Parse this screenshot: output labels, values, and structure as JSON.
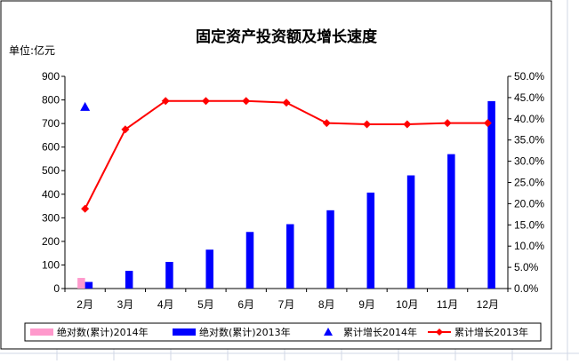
{
  "chart_data": {
    "type": "bar",
    "title": "固定资产投资额及增长速度",
    "unit_label": "单位:亿元",
    "categories": [
      "2月",
      "3月",
      "4月",
      "5月",
      "6月",
      "7月",
      "8月",
      "9月",
      "10月",
      "11月",
      "12月"
    ],
    "y_left": {
      "min": 0,
      "max": 900,
      "step": 100,
      "ticks": [
        "0",
        "100",
        "200",
        "300",
        "400",
        "500",
        "600",
        "700",
        "800",
        "900"
      ]
    },
    "y_right": {
      "min": 0,
      "max": 0.5,
      "step": 0.05,
      "ticks": [
        "0.0%",
        "5.0%",
        "10.0%",
        "15.0%",
        "20.0%",
        "25.0%",
        "30.0%",
        "35.0%",
        "40.0%",
        "45.0%",
        "50.0%"
      ]
    },
    "grid": false,
    "legend_position": "bottom",
    "series": [
      {
        "name": "绝对数(累计)2014年",
        "type": "bar",
        "axis": "left",
        "color": "#ff99cc",
        "values": [
          45,
          null,
          null,
          null,
          null,
          null,
          null,
          null,
          null,
          null,
          null
        ]
      },
      {
        "name": "绝对数(累计)2013年",
        "type": "bar",
        "axis": "left",
        "color": "#0000ff",
        "values": [
          28,
          75,
          113,
          165,
          240,
          273,
          332,
          407,
          480,
          570,
          795
        ]
      },
      {
        "name": "累计增长2014年",
        "type": "scatter",
        "axis": "right",
        "color": "#0000ff",
        "marker": "triangle",
        "values": [
          0.427,
          null,
          null,
          null,
          null,
          null,
          null,
          null,
          null,
          null,
          null
        ]
      },
      {
        "name": "累计增长2013年",
        "type": "line",
        "axis": "right",
        "color": "#ff0000",
        "marker": "diamond",
        "values": [
          0.188,
          0.375,
          0.442,
          0.442,
          0.442,
          0.438,
          0.39,
          0.387,
          0.387,
          0.39,
          0.39
        ]
      }
    ]
  }
}
